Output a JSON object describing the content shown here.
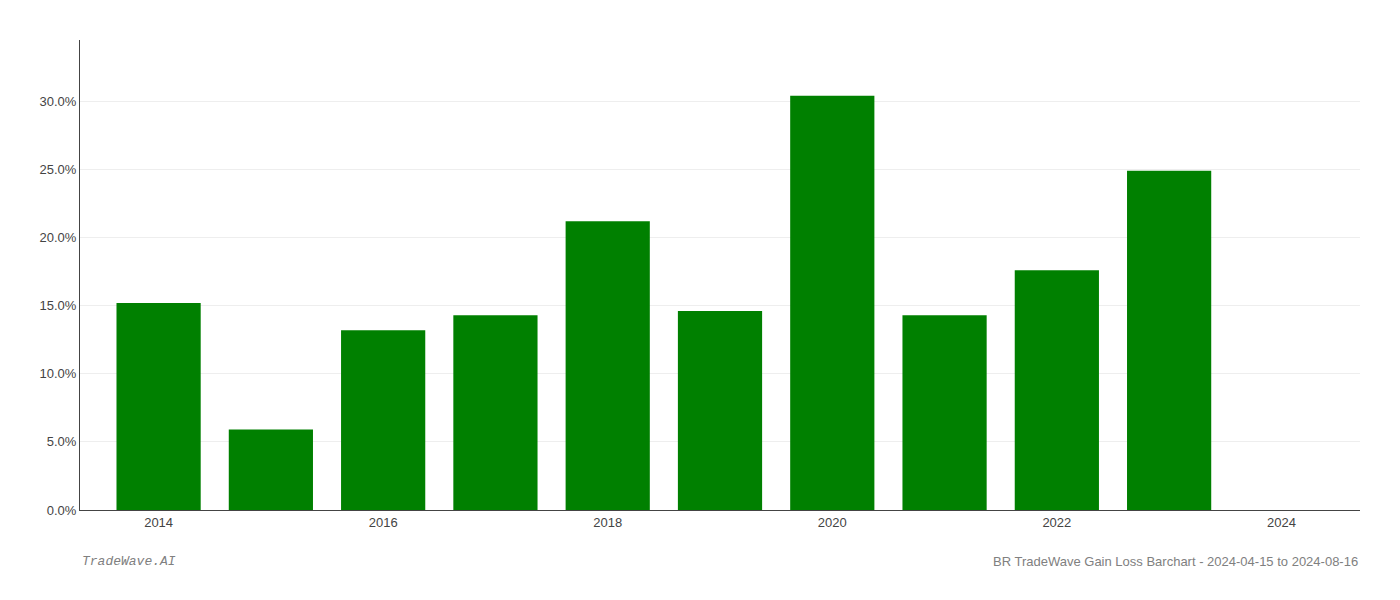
{
  "chart_data": {
    "type": "bar",
    "x": [
      2014,
      2015,
      2016,
      2017,
      2018,
      2019,
      2020,
      2021,
      2022,
      2023,
      2024
    ],
    "values": [
      0.152,
      0.059,
      0.132,
      0.143,
      0.212,
      0.146,
      0.304,
      0.143,
      0.176,
      0.249,
      0.0
    ],
    "color": "#008000",
    "xlim": [
      2013.3,
      2024.7
    ],
    "xticks": [
      2014,
      2016,
      2018,
      2020,
      2022,
      2024
    ],
    "ylim": [
      0,
      0.345
    ],
    "yticks": [
      {
        "value": 0.0,
        "label": "0.0%"
      },
      {
        "value": 0.05,
        "label": "5.0%"
      },
      {
        "value": 0.1,
        "label": "10.0%"
      },
      {
        "value": 0.15,
        "label": "15.0%"
      },
      {
        "value": 0.2,
        "label": "20.0%"
      },
      {
        "value": 0.25,
        "label": "25.0%"
      },
      {
        "value": 0.3,
        "label": "30.0%"
      }
    ],
    "grid": true,
    "annotations": [
      "TradeWave.AI",
      "BR TradeWave Gain Loss Barchart - 2024-04-15 to 2024-08-16"
    ]
  }
}
